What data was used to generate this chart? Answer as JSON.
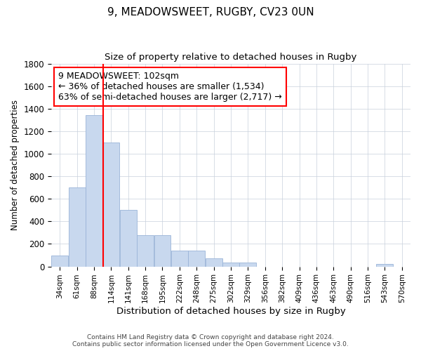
{
  "title_line1": "9, MEADOWSWEET, RUGBY, CV23 0UN",
  "title_line2": "Size of property relative to detached houses in Rugby",
  "xlabel": "Distribution of detached houses by size in Rugby",
  "ylabel": "Number of detached properties",
  "bar_color": "#c8d8ee",
  "bar_edge_color": "#9ab4d8",
  "vline_color": "red",
  "vline_x_index": 2.85,
  "categories": [
    "34sqm",
    "61sqm",
    "88sqm",
    "114sqm",
    "141sqm",
    "168sqm",
    "195sqm",
    "222sqm",
    "248sqm",
    "275sqm",
    "302sqm",
    "329sqm",
    "356sqm",
    "382sqm",
    "409sqm",
    "436sqm",
    "463sqm",
    "490sqm",
    "516sqm",
    "543sqm",
    "570sqm"
  ],
  "values": [
    100,
    700,
    1340,
    1100,
    500,
    275,
    275,
    140,
    140,
    70,
    35,
    35,
    0,
    0,
    0,
    0,
    0,
    0,
    0,
    20,
    0
  ],
  "ylim": [
    0,
    1800
  ],
  "yticks": [
    0,
    200,
    400,
    600,
    800,
    1000,
    1200,
    1400,
    1600,
    1800
  ],
  "annotation_text": "9 MEADOWSWEET: 102sqm\n← 36% of detached houses are smaller (1,534)\n63% of semi-detached houses are larger (2,717) →",
  "annotation_fontsize": 9,
  "footer_line1": "Contains HM Land Registry data © Crown copyright and database right 2024.",
  "footer_line2": "Contains public sector information licensed under the Open Government Licence v3.0.",
  "bg_color": "#ffffff",
  "plot_bg_color": "#ffffff",
  "grid_color": "#c8d0dc"
}
